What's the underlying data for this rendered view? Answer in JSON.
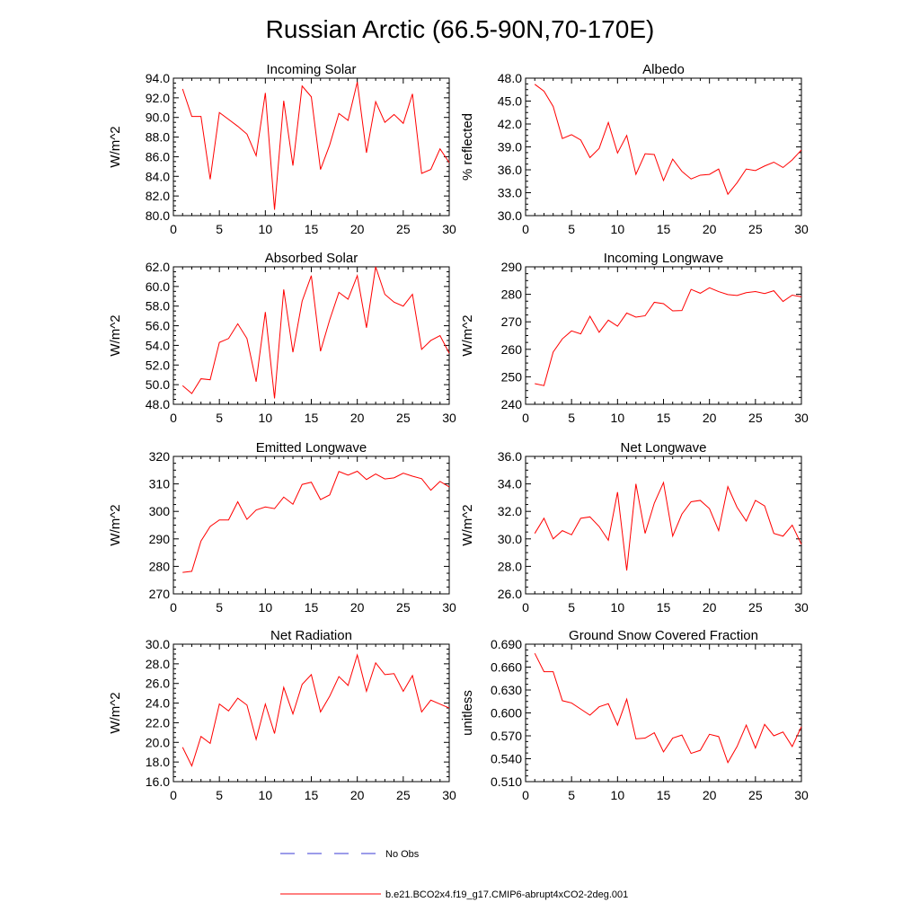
{
  "figure": {
    "title": "Russian Arctic (66.5-90N,70-170E)",
    "colors": {
      "model": "#ff0000",
      "obs": "#3a3ad6",
      "axes": "#000000"
    }
  },
  "chart_data": [
    {
      "type": "line",
      "title": "Incoming Solar",
      "ylabel": "W/m^2",
      "xlabel": "",
      "xlim": [
        0,
        30
      ],
      "ylim": [
        80,
        94
      ],
      "xticks": [
        0,
        5,
        10,
        15,
        20,
        25,
        30
      ],
      "yticks": [
        80.0,
        82.0,
        84.0,
        86.0,
        88.0,
        90.0,
        92.0,
        94.0
      ],
      "ydecimals": 1,
      "series": [
        {
          "name": "b.e21.BCO2x4.f19_g17.CMIP6-abrupt4xCO2-2deg.001",
          "x": [
            1,
            2,
            3,
            4,
            5,
            6,
            7,
            8,
            9,
            10,
            11,
            12,
            13,
            14,
            15,
            16,
            17,
            18,
            19,
            20,
            21,
            22,
            23,
            24,
            25,
            26,
            27,
            28,
            29,
            30
          ],
          "values": [
            92.9,
            90.1,
            90.1,
            83.7,
            90.5,
            89.8,
            89.1,
            88.3,
            86.1,
            92.5,
            80.6,
            91.7,
            85.1,
            93.2,
            92.1,
            84.7,
            87.2,
            90.4,
            89.7,
            93.6,
            86.4,
            91.6,
            89.5,
            90.3,
            89.4,
            92.4,
            84.3,
            84.7,
            86.8,
            85.4
          ]
        }
      ]
    },
    {
      "type": "line",
      "title": "Albedo",
      "ylabel": "% reflected",
      "xlabel": "",
      "xlim": [
        0,
        30
      ],
      "ylim": [
        30,
        48
      ],
      "xticks": [
        0,
        5,
        10,
        15,
        20,
        25,
        30
      ],
      "yticks": [
        30.0,
        33.0,
        36.0,
        39.0,
        42.0,
        45.0,
        48.0
      ],
      "ydecimals": 1,
      "series": [
        {
          "name": "b.e21.BCO2x4.f19_g17.CMIP6-abrupt4xCO2-2deg.001",
          "x": [
            1,
            2,
            3,
            4,
            5,
            6,
            7,
            8,
            9,
            10,
            11,
            12,
            13,
            14,
            15,
            16,
            17,
            18,
            19,
            20,
            21,
            22,
            23,
            24,
            25,
            26,
            27,
            28,
            29,
            30
          ],
          "values": [
            47.2,
            46.3,
            44.3,
            40.1,
            40.6,
            39.9,
            37.6,
            38.8,
            42.2,
            38.2,
            40.5,
            35.4,
            38.1,
            38.0,
            34.6,
            37.4,
            35.8,
            34.8,
            35.3,
            35.4,
            36.1,
            32.8,
            34.3,
            36.1,
            35.9,
            36.5,
            37.0,
            36.3,
            37.3,
            38.6
          ]
        }
      ]
    },
    {
      "type": "line",
      "title": "Absorbed Solar",
      "ylabel": "W/m^2",
      "xlabel": "",
      "xlim": [
        0,
        30
      ],
      "ylim": [
        48,
        62
      ],
      "xticks": [
        0,
        5,
        10,
        15,
        20,
        25,
        30
      ],
      "yticks": [
        48.0,
        50.0,
        52.0,
        54.0,
        56.0,
        58.0,
        60.0,
        62.0
      ],
      "ydecimals": 1,
      "series": [
        {
          "name": "b.e21.BCO2x4.f19_g17.CMIP6-abrupt4xCO2-2deg.001",
          "x": [
            1,
            2,
            3,
            4,
            5,
            6,
            7,
            8,
            9,
            10,
            11,
            12,
            13,
            14,
            15,
            16,
            17,
            18,
            19,
            20,
            21,
            22,
            23,
            24,
            25,
            26,
            27,
            28,
            29,
            30
          ],
          "values": [
            49.9,
            49.1,
            50.6,
            50.5,
            54.3,
            54.7,
            56.2,
            54.7,
            50.3,
            57.4,
            48.6,
            59.7,
            53.3,
            58.5,
            61.1,
            53.4,
            56.6,
            59.4,
            58.7,
            61.1,
            55.8,
            62.0,
            59.2,
            58.4,
            58.0,
            59.2,
            53.6,
            54.5,
            55.0,
            53.2
          ]
        }
      ]
    },
    {
      "type": "line",
      "title": "Incoming Longwave",
      "ylabel": "W/m^2",
      "xlabel": "",
      "xlim": [
        0,
        30
      ],
      "ylim": [
        240,
        290
      ],
      "xticks": [
        0,
        5,
        10,
        15,
        20,
        25,
        30
      ],
      "yticks": [
        240,
        250,
        260,
        270,
        280,
        290
      ],
      "ydecimals": 0,
      "series": [
        {
          "name": "b.e21.BCO2x4.f19_g17.CMIP6-abrupt4xCO2-2deg.001",
          "x": [
            1,
            2,
            3,
            4,
            5,
            6,
            7,
            8,
            9,
            10,
            11,
            12,
            13,
            14,
            15,
            16,
            17,
            18,
            19,
            20,
            21,
            22,
            23,
            24,
            25,
            26,
            27,
            28,
            29,
            30
          ],
          "values": [
            247.5,
            246.8,
            259.0,
            263.8,
            266.7,
            265.6,
            272.0,
            266.2,
            270.6,
            268.4,
            273.2,
            271.7,
            272.2,
            277.1,
            276.6,
            274.0,
            274.1,
            281.8,
            280.4,
            282.4,
            281.0,
            279.9,
            279.6,
            280.6,
            281.0,
            280.3,
            281.3,
            277.4,
            279.7,
            279.1
          ]
        }
      ]
    },
    {
      "type": "line",
      "title": "Emitted Longwave",
      "ylabel": "W/m^2",
      "xlabel": "",
      "xlim": [
        0,
        30
      ],
      "ylim": [
        270,
        320
      ],
      "xticks": [
        0,
        5,
        10,
        15,
        20,
        25,
        30
      ],
      "yticks": [
        270,
        280,
        290,
        300,
        310,
        320
      ],
      "ydecimals": 0,
      "series": [
        {
          "name": "b.e21.BCO2x4.f19_g17.CMIP6-abrupt4xCO2-2deg.001",
          "x": [
            1,
            2,
            3,
            4,
            5,
            6,
            7,
            8,
            9,
            10,
            11,
            12,
            13,
            14,
            15,
            16,
            17,
            18,
            19,
            20,
            21,
            22,
            23,
            24,
            25,
            26,
            27,
            28,
            29,
            30
          ],
          "values": [
            277.8,
            278.2,
            289.2,
            294.5,
            296.9,
            296.9,
            303.5,
            297.1,
            300.5,
            301.6,
            301.0,
            305.2,
            302.6,
            309.8,
            310.6,
            304.3,
            306.0,
            314.5,
            313.2,
            314.6,
            311.6,
            313.6,
            311.8,
            312.2,
            313.9,
            312.8,
            311.9,
            307.7,
            310.9,
            308.9
          ]
        }
      ]
    },
    {
      "type": "line",
      "title": "Net Longwave",
      "ylabel": "W/m^2",
      "xlabel": "",
      "xlim": [
        0,
        30
      ],
      "ylim": [
        26,
        36
      ],
      "xticks": [
        0,
        5,
        10,
        15,
        20,
        25,
        30
      ],
      "yticks": [
        26.0,
        28.0,
        30.0,
        32.0,
        34.0,
        36.0
      ],
      "ydecimals": 1,
      "series": [
        {
          "name": "b.e21.BCO2x4.f19_g17.CMIP6-abrupt4xCO2-2deg.001",
          "x": [
            1,
            2,
            3,
            4,
            5,
            6,
            7,
            8,
            9,
            10,
            11,
            12,
            13,
            14,
            15,
            16,
            17,
            18,
            19,
            20,
            21,
            22,
            23,
            24,
            25,
            26,
            27,
            28,
            29,
            30
          ],
          "values": [
            30.4,
            31.5,
            30.0,
            30.6,
            30.3,
            31.5,
            31.6,
            30.9,
            29.9,
            33.4,
            27.7,
            34.0,
            30.4,
            32.6,
            34.1,
            30.2,
            31.8,
            32.7,
            32.8,
            32.2,
            30.6,
            33.8,
            32.3,
            31.3,
            32.8,
            32.4,
            30.4,
            30.2,
            31.0,
            29.6
          ]
        }
      ]
    },
    {
      "type": "line",
      "title": "Net Radiation",
      "ylabel": "W/m^2",
      "xlabel": "",
      "xlim": [
        0,
        30
      ],
      "ylim": [
        16,
        30
      ],
      "xticks": [
        0,
        5,
        10,
        15,
        20,
        25,
        30
      ],
      "yticks": [
        16.0,
        18.0,
        20.0,
        22.0,
        24.0,
        26.0,
        28.0,
        30.0
      ],
      "ydecimals": 1,
      "series": [
        {
          "name": "b.e21.BCO2x4.f19_g17.CMIP6-abrupt4xCO2-2deg.001",
          "x": [
            1,
            2,
            3,
            4,
            5,
            6,
            7,
            8,
            9,
            10,
            11,
            12,
            13,
            14,
            15,
            16,
            17,
            18,
            19,
            20,
            21,
            22,
            23,
            24,
            25,
            26,
            27,
            28,
            29,
            30
          ],
          "values": [
            19.5,
            17.6,
            20.6,
            19.9,
            23.9,
            23.2,
            24.5,
            23.8,
            20.3,
            23.9,
            20.9,
            25.6,
            22.9,
            25.9,
            26.9,
            23.1,
            24.7,
            26.7,
            25.8,
            28.9,
            25.2,
            28.1,
            26.9,
            27.0,
            25.2,
            26.8,
            23.1,
            24.3,
            23.9,
            23.5
          ]
        }
      ]
    },
    {
      "type": "line",
      "title": "Ground Snow Covered Fraction",
      "ylabel": "unitless",
      "xlabel": "",
      "xlim": [
        0,
        30
      ],
      "ylim": [
        0.51,
        0.69
      ],
      "xticks": [
        0,
        5,
        10,
        15,
        20,
        25,
        30
      ],
      "yticks": [
        0.51,
        0.54,
        0.57,
        0.6,
        0.63,
        0.66,
        0.69
      ],
      "ydecimals": 3,
      "series": [
        {
          "name": "b.e21.BCO2x4.f19_g17.CMIP6-abrupt4xCO2-2deg.001",
          "x": [
            1,
            2,
            3,
            4,
            5,
            6,
            7,
            8,
            9,
            10,
            11,
            12,
            13,
            14,
            15,
            16,
            17,
            18,
            19,
            20,
            21,
            22,
            23,
            24,
            25,
            26,
            27,
            28,
            29,
            30
          ],
          "values": [
            0.678,
            0.654,
            0.654,
            0.616,
            0.613,
            0.605,
            0.597,
            0.608,
            0.612,
            0.584,
            0.618,
            0.566,
            0.567,
            0.574,
            0.549,
            0.567,
            0.571,
            0.547,
            0.551,
            0.572,
            0.569,
            0.535,
            0.556,
            0.584,
            0.554,
            0.585,
            0.57,
            0.575,
            0.556,
            0.582
          ]
        }
      ]
    }
  ],
  "legend": {
    "position": "bottom-center",
    "entries": [
      {
        "label": "No Obs",
        "style": "dashed",
        "color": "#3a3ad6"
      },
      {
        "label": "b.e21.BCO2x4.f19_g17.CMIP6-abrupt4xCO2-2deg.001",
        "style": "solid",
        "color": "#ff0000"
      }
    ]
  }
}
